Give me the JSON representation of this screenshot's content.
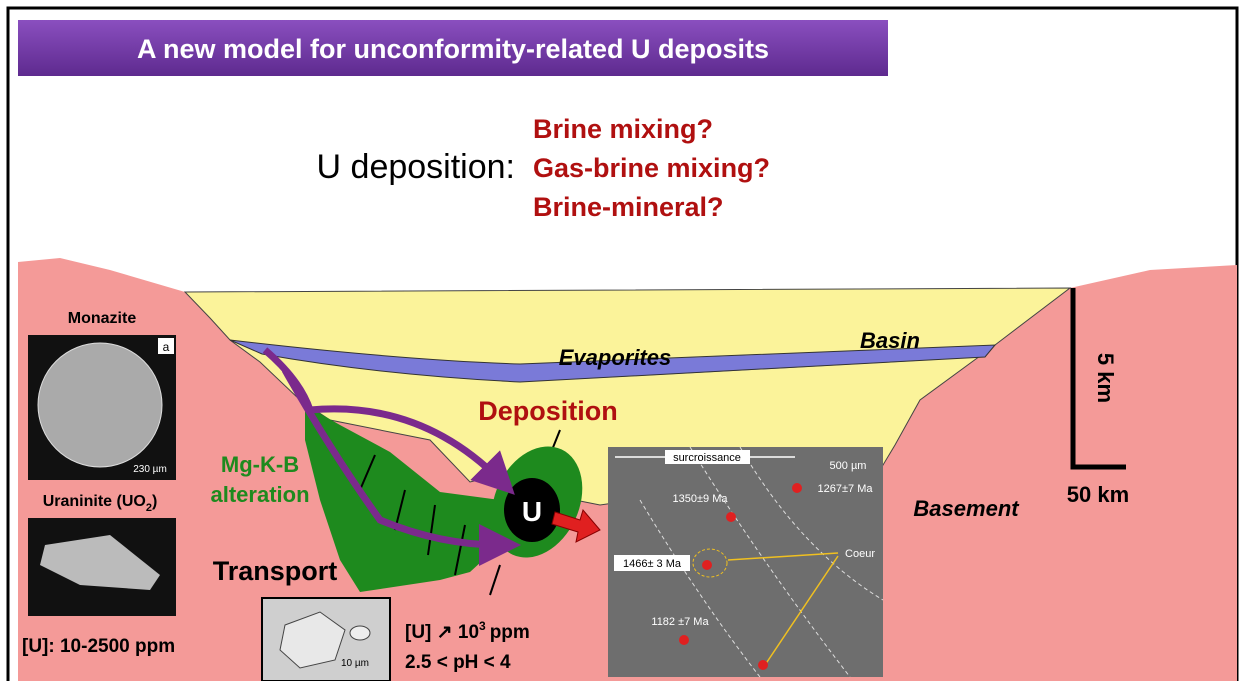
{
  "title": "A new model for unconformity-related U deposits",
  "deposition_label": "U deposition:",
  "hypotheses": [
    "Brine mixing?",
    "Gas-brine mixing?",
    "Brine-mineral?"
  ],
  "diagram": {
    "basin": "Basin",
    "evaporites": "Evaporites",
    "basement": "Basement",
    "deposition": "Deposition",
    "u": "U",
    "alteration": [
      "Mg-K-B",
      "alteration"
    ],
    "transport": "Transport",
    "scale_vertical": "5 km",
    "scale_horizontal": "50 km"
  },
  "left_panel": {
    "monazite": "Monazite",
    "monazite_tag": "a",
    "monazite_scale": "230 µm",
    "uraninite": {
      "before": "Uraninite (UO",
      "sub": "2",
      "after": ")"
    },
    "concentration": "[U]: 10-2500 ppm"
  },
  "inclusion": {
    "scale": "10 µm",
    "u": {
      "before": "[U]",
      "arrow": "↗",
      "base": "10",
      "sup": "3",
      "after": "ppm"
    },
    "ph": "2.5 < pH < 4"
  },
  "inset": {
    "overgrowth": "surcroissance",
    "scale": "500 µm",
    "ages": [
      "1267±7 Ma",
      "1350±9 Ma",
      "1466± 3 Ma",
      "1182 ±7 Ma"
    ],
    "core": "Coeur"
  }
}
